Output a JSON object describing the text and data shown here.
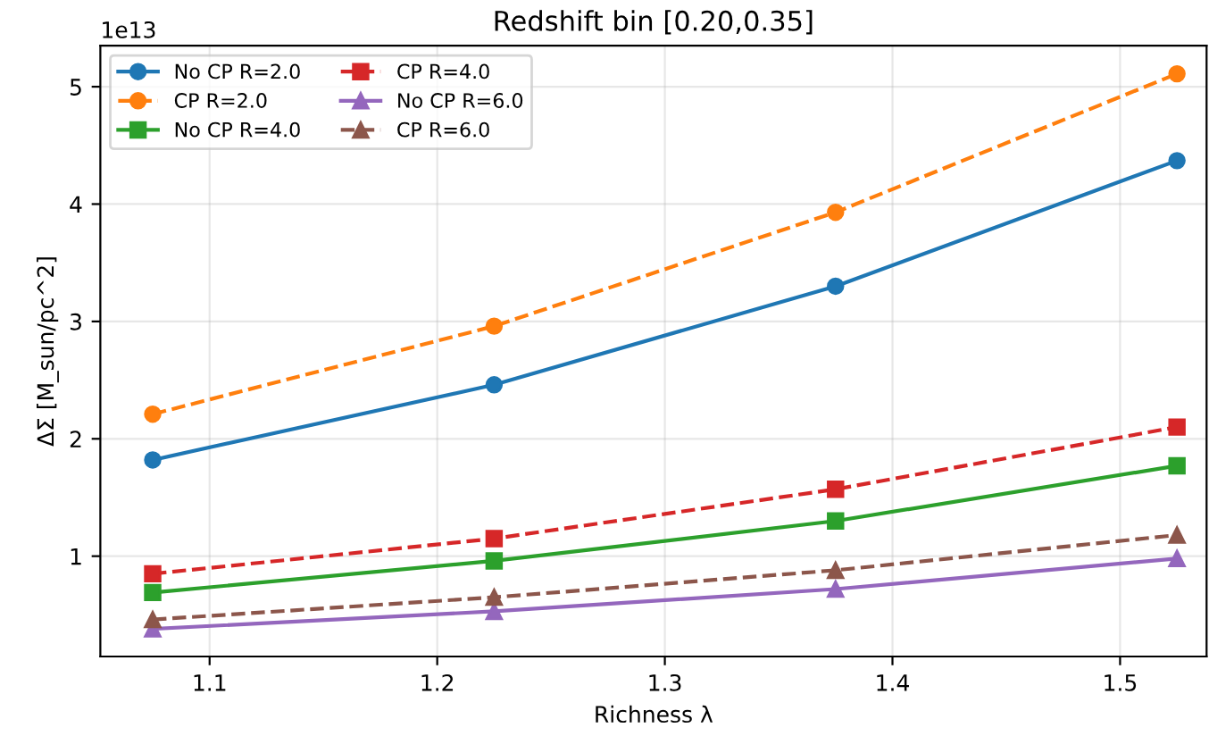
{
  "chart_data": {
    "type": "line",
    "title": "Redshift bin [0.20,0.35]",
    "xlabel": "Richness λ",
    "ylabel": "ΔΣ [M_sun/pc^2]",
    "annotations": [
      "1e13"
    ],
    "x": [
      1.075,
      1.225,
      1.375,
      1.525
    ],
    "series": [
      {
        "name": "No CP R=2.0",
        "color": "#1f77b4",
        "marker": "circle",
        "line_style": "solid",
        "values": [
          1.82,
          2.46,
          3.3,
          4.37
        ]
      },
      {
        "name": "CP R=2.0",
        "color": "#ff7f0e",
        "marker": "circle",
        "line_style": "dashed",
        "values": [
          2.21,
          2.96,
          3.93,
          5.11
        ]
      },
      {
        "name": "No CP R=4.0",
        "color": "#2ca02c",
        "marker": "square",
        "line_style": "solid",
        "values": [
          0.69,
          0.96,
          1.3,
          1.77
        ]
      },
      {
        "name": "CP R=4.0",
        "color": "#d62728",
        "marker": "square",
        "line_style": "dashed",
        "values": [
          0.85,
          1.15,
          1.57,
          2.1
        ]
      },
      {
        "name": "No CP R=6.0",
        "color": "#9467bd",
        "marker": "triangle",
        "line_style": "solid",
        "values": [
          0.38,
          0.53,
          0.72,
          0.98
        ]
      },
      {
        "name": "CP R=6.0",
        "color": "#8c564b",
        "marker": "triangle",
        "line_style": "dashed",
        "values": [
          0.46,
          0.65,
          0.88,
          1.18
        ]
      }
    ],
    "xlim": [
      1.052,
      1.538
    ],
    "ylim": [
      0.145,
      5.35
    ],
    "xticks": [
      1.1,
      1.2,
      1.3,
      1.4,
      1.5
    ],
    "yticks": [
      1,
      2,
      3,
      4,
      5
    ],
    "grid": true,
    "legend": "top left"
  }
}
